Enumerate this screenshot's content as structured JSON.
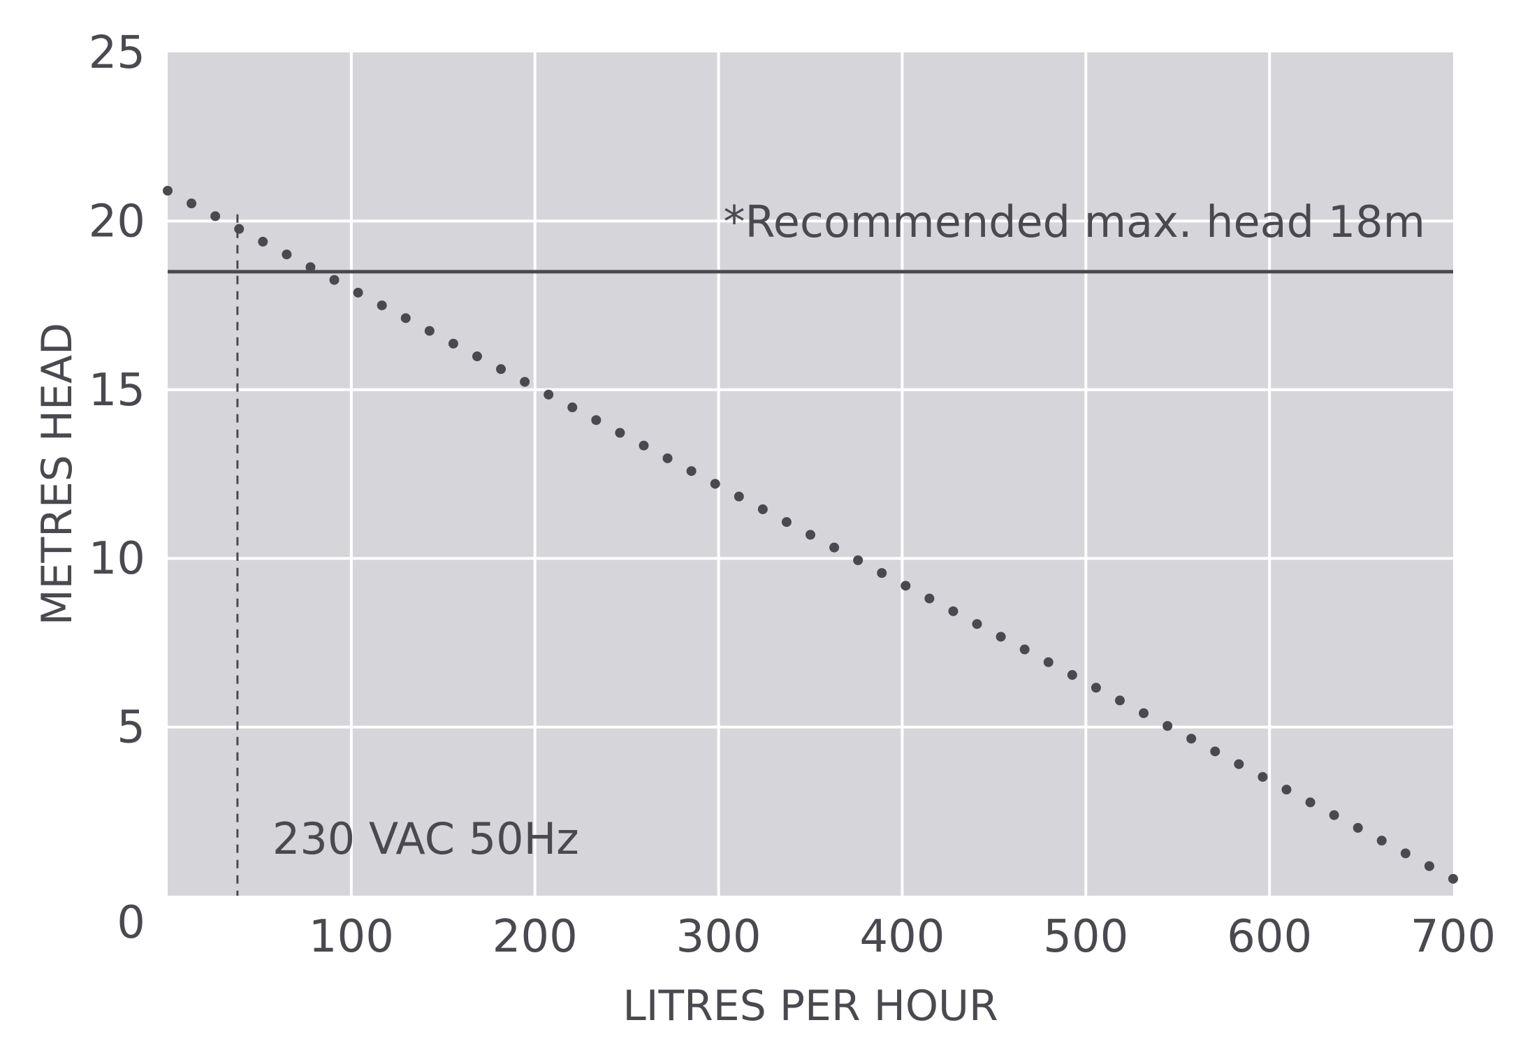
{
  "chart_data": {
    "type": "scatter",
    "xlabel": "LITRES PER HOUR",
    "ylabel": "METRES HEAD",
    "xlim": [
      0,
      700
    ],
    "ylim": [
      0,
      25
    ],
    "x_ticks": [
      100,
      200,
      300,
      400,
      500,
      600,
      700
    ],
    "y_ticks": [
      0,
      5,
      10,
      15,
      20,
      25
    ],
    "grid": true,
    "colors": {
      "plot_bg": "#d6d6da",
      "grid": "#ffffff",
      "ink": "#4a494f"
    },
    "series": [
      {
        "style": "dotted",
        "x": [
          0,
          700
        ],
        "y": [
          20.9,
          0.5
        ],
        "points_count": 55
      }
    ],
    "reference_lines": [
      {
        "orientation": "horizontal",
        "value": 18.5,
        "style": "solid",
        "label": "*Recommended max. head 18m"
      },
      {
        "orientation": "vertical",
        "value": 38,
        "style": "dashed",
        "label": "230 VAC 50Hz"
      }
    ]
  }
}
